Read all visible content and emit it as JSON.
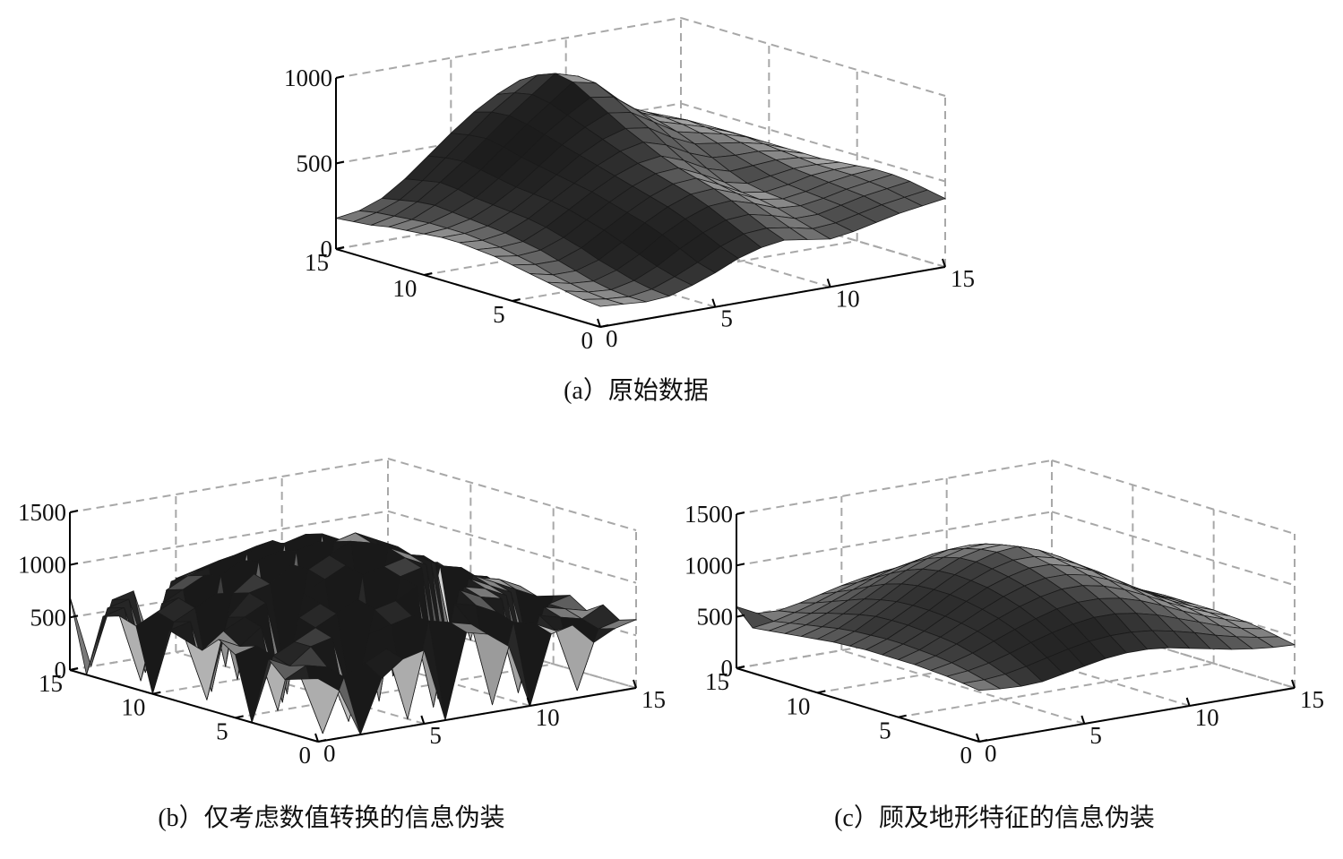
{
  "chart_data": [
    {
      "type": "surface",
      "title": "(a）原始数据",
      "x": [
        0,
        1,
        2,
        3,
        4,
        5,
        6,
        7,
        8,
        9,
        10,
        11,
        12,
        13,
        14,
        15
      ],
      "y": [
        0,
        1,
        2,
        3,
        4,
        5,
        6,
        7,
        8,
        9,
        10,
        11,
        12,
        13,
        14,
        15
      ],
      "xlim": [
        0,
        15
      ],
      "ylim": [
        0,
        15
      ],
      "zlim": [
        0,
        1000
      ],
      "xticks": [
        0,
        5,
        10,
        15
      ],
      "yticks": [
        0,
        5,
        10,
        15
      ],
      "zticks": [
        0,
        500,
        1000
      ],
      "grid": true,
      "z": [
        [
          120,
          110,
          100,
          110,
          150,
          200,
          260,
          300,
          320,
          300,
          280,
          300,
          330,
          360,
          380,
          400
        ],
        [
          130,
          110,
          100,
          120,
          170,
          230,
          300,
          350,
          360,
          340,
          310,
          320,
          350,
          380,
          400,
          420
        ],
        [
          150,
          120,
          110,
          140,
          200,
          280,
          350,
          400,
          410,
          380,
          340,
          340,
          370,
          400,
          420,
          440
        ],
        [
          170,
          140,
          130,
          170,
          240,
          330,
          400,
          450,
          460,
          420,
          370,
          360,
          380,
          410,
          430,
          450
        ],
        [
          190,
          160,
          160,
          200,
          280,
          370,
          440,
          490,
          500,
          450,
          390,
          370,
          390,
          420,
          440,
          450
        ],
        [
          210,
          190,
          190,
          240,
          320,
          400,
          470,
          520,
          530,
          470,
          400,
          380,
          400,
          430,
          440,
          440
        ],
        [
          230,
          210,
          220,
          270,
          350,
          430,
          500,
          550,
          560,
          500,
          430,
          400,
          420,
          440,
          440,
          430
        ],
        [
          240,
          230,
          240,
          300,
          380,
          460,
          530,
          580,
          600,
          550,
          480,
          440,
          450,
          460,
          450,
          420
        ],
        [
          250,
          240,
          260,
          320,
          400,
          480,
          560,
          620,
          650,
          610,
          540,
          490,
          480,
          480,
          460,
          420
        ],
        [
          250,
          250,
          270,
          330,
          410,
          500,
          590,
          660,
          700,
          680,
          600,
          540,
          520,
          500,
          470,
          420
        ],
        [
          240,
          250,
          280,
          340,
          420,
          520,
          620,
          700,
          760,
          740,
          660,
          580,
          550,
          520,
          480,
          420
        ],
        [
          230,
          250,
          290,
          350,
          440,
          540,
          650,
          740,
          820,
          800,
          700,
          610,
          570,
          530,
          480,
          420
        ],
        [
          220,
          240,
          300,
          370,
          460,
          570,
          680,
          780,
          880,
          850,
          730,
          630,
          580,
          540,
          480,
          420
        ],
        [
          200,
          230,
          290,
          380,
          480,
          590,
          700,
          800,
          900,
          860,
          740,
          640,
          580,
          530,
          470,
          410
        ],
        [
          190,
          220,
          270,
          360,
          470,
          580,
          690,
          780,
          860,
          820,
          710,
          620,
          560,
          510,
          450,
          400
        ],
        [
          180,
          200,
          250,
          340,
          450,
          560,
          660,
          740,
          800,
          760,
          660,
          580,
          530,
          490,
          430,
          380
        ]
      ]
    },
    {
      "type": "surface",
      "title": "(b）仅考虑数值转换的信息伪装",
      "x": [
        0,
        1,
        2,
        3,
        4,
        5,
        6,
        7,
        8,
        9,
        10,
        11,
        12,
        13,
        14,
        15
      ],
      "y": [
        0,
        1,
        2,
        3,
        4,
        5,
        6,
        7,
        8,
        9,
        10,
        11,
        12,
        13,
        14,
        15
      ],
      "xlim": [
        0,
        15
      ],
      "ylim": [
        0,
        15
      ],
      "zlim": [
        0,
        1500
      ],
      "xticks": [
        0,
        5,
        10,
        15
      ],
      "yticks": [
        0,
        5,
        10,
        15
      ],
      "zticks": [
        0,
        500,
        1000,
        1500
      ],
      "grid": true,
      "z": [
        [
          600,
          450,
          0,
          500,
          650,
          700,
          0,
          800,
          750,
          600,
          0,
          650,
          700,
          500,
          600,
          650
        ],
        [
          550,
          0,
          500,
          600,
          700,
          0,
          900,
          850,
          800,
          0,
          750,
          700,
          600,
          0,
          550,
          600
        ],
        [
          500,
          600,
          550,
          0,
          800,
          850,
          900,
          0,
          950,
          900,
          800,
          0,
          700,
          650,
          600,
          700
        ],
        [
          650,
          550,
          700,
          750,
          0,
          950,
          1000,
          1100,
          0,
          1000,
          900,
          850,
          0,
          700,
          650,
          600
        ],
        [
          0,
          600,
          700,
          800,
          900,
          1000,
          0,
          1150,
          1200,
          0,
          950,
          900,
          800,
          0,
          650,
          700
        ],
        [
          600,
          650,
          0,
          850,
          950,
          0,
          1150,
          1200,
          1250,
          1150,
          0,
          950,
          850,
          750,
          0,
          650
        ],
        [
          700,
          600,
          750,
          0,
          1000,
          1100,
          1200,
          0,
          1300,
          1200,
          1100,
          0,
          900,
          800,
          700,
          600
        ],
        [
          550,
          700,
          800,
          900,
          0,
          1150,
          1250,
          1350,
          1300,
          0,
          1100,
          1000,
          0,
          800,
          750,
          650
        ],
        [
          600,
          0,
          750,
          950,
          1000,
          1150,
          0,
          1300,
          1350,
          1250,
          1150,
          0,
          900,
          850,
          0,
          600
        ],
        [
          650,
          700,
          0,
          900,
          1050,
          0,
          1200,
          1250,
          0,
          1200,
          1100,
          1000,
          950,
          0,
          700,
          650
        ],
        [
          0,
          650,
          750,
          850,
          0,
          1100,
          1150,
          0,
          1250,
          1150,
          0,
          950,
          900,
          800,
          650,
          0
        ],
        [
          600,
          700,
          800,
          0,
          950,
          1050,
          0,
          1150,
          1200,
          0,
          1000,
          900,
          0,
          750,
          700,
          600
        ],
        [
          650,
          0,
          700,
          800,
          900,
          0,
          1050,
          1100,
          0,
          1050,
          950,
          0,
          800,
          700,
          0,
          650
        ],
        [
          600,
          650,
          0,
          750,
          850,
          900,
          950,
          0,
          1050,
          950,
          0,
          850,
          750,
          0,
          650,
          600
        ],
        [
          0,
          600,
          650,
          0,
          750,
          800,
          0,
          900,
          950,
          0,
          850,
          750,
          0,
          650,
          600,
          0
        ],
        [
          700,
          0,
          600,
          650,
          0,
          700,
          750,
          800,
          0,
          800,
          750,
          0,
          650,
          600,
          550,
          600
        ]
      ]
    },
    {
      "type": "surface",
      "title": "(c）顾及地形特征的信息伪装",
      "x": [
        0,
        1,
        2,
        3,
        4,
        5,
        6,
        7,
        8,
        9,
        10,
        11,
        12,
        13,
        14,
        15
      ],
      "y": [
        0,
        1,
        2,
        3,
        4,
        5,
        6,
        7,
        8,
        9,
        10,
        11,
        12,
        13,
        14,
        15
      ],
      "xlim": [
        0,
        15
      ],
      "ylim": [
        0,
        15
      ],
      "zlim": [
        0,
        1500
      ],
      "xticks": [
        0,
        5,
        10,
        15
      ],
      "yticks": [
        0,
        5,
        10,
        15
      ],
      "zticks": [
        0,
        500,
        1000,
        1500
      ],
      "grid": true,
      "z": [
        [
          500,
          480,
          470,
          480,
          520,
          560,
          600,
          620,
          620,
          600,
          560,
          520,
          480,
          450,
          430,
          420
        ],
        [
          520,
          520,
          540,
          580,
          630,
          680,
          720,
          740,
          740,
          720,
          680,
          630,
          570,
          520,
          480,
          450
        ],
        [
          540,
          560,
          600,
          660,
          730,
          790,
          840,
          870,
          870,
          840,
          790,
          720,
          650,
          580,
          520,
          480
        ],
        [
          550,
          590,
          650,
          730,
          810,
          880,
          940,
          970,
          970,
          940,
          880,
          800,
          710,
          630,
          560,
          500
        ],
        [
          560,
          610,
          690,
          780,
          870,
          950,
          1010,
          1050,
          1050,
          1010,
          940,
          850,
          750,
          660,
          580,
          510
        ],
        [
          560,
          620,
          710,
          810,
          910,
          1000,
          1070,
          1110,
          1110,
          1070,
          990,
          890,
          780,
          680,
          590,
          520
        ],
        [
          560,
          630,
          720,
          830,
          940,
          1040,
          1110,
          1160,
          1160,
          1110,
          1030,
          920,
          800,
          690,
          600,
          520
        ],
        [
          560,
          630,
          730,
          840,
          960,
          1060,
          1140,
          1190,
          1190,
          1140,
          1050,
          940,
          810,
          700,
          600,
          520
        ],
        [
          550,
          620,
          730,
          840,
          960,
          1070,
          1160,
          1220,
          1240,
          1170,
          1070,
          950,
          820,
          700,
          600,
          520
        ],
        [
          540,
          610,
          720,
          830,
          950,
          1060,
          1150,
          1200,
          1210,
          1150,
          1060,
          940,
          810,
          690,
          590,
          510
        ],
        [
          520,
          590,
          690,
          800,
          920,
          1030,
          1110,
          1160,
          1170,
          1120,
          1030,
          920,
          790,
          670,
          570,
          490
        ],
        [
          500,
          560,
          650,
          760,
          870,
          970,
          1050,
          1100,
          1110,
          1060,
          980,
          870,
          750,
          640,
          540,
          470
        ],
        [
          480,
          530,
          610,
          700,
          800,
          890,
          960,
          1010,
          1020,
          980,
          900,
          800,
          700,
          600,
          510,
          450
        ],
        [
          460,
          500,
          560,
          640,
          720,
          800,
          860,
          900,
          910,
          880,
          810,
          730,
          640,
          560,
          480,
          430
        ],
        [
          440,
          470,
          520,
          580,
          650,
          710,
          760,
          790,
          800,
          780,
          720,
          650,
          580,
          510,
          450,
          410
        ],
        [
          600,
          500,
          490,
          530,
          580,
          630,
          670,
          700,
          710,
          690,
          640,
          590,
          530,
          480,
          430,
          400
        ]
      ]
    }
  ]
}
